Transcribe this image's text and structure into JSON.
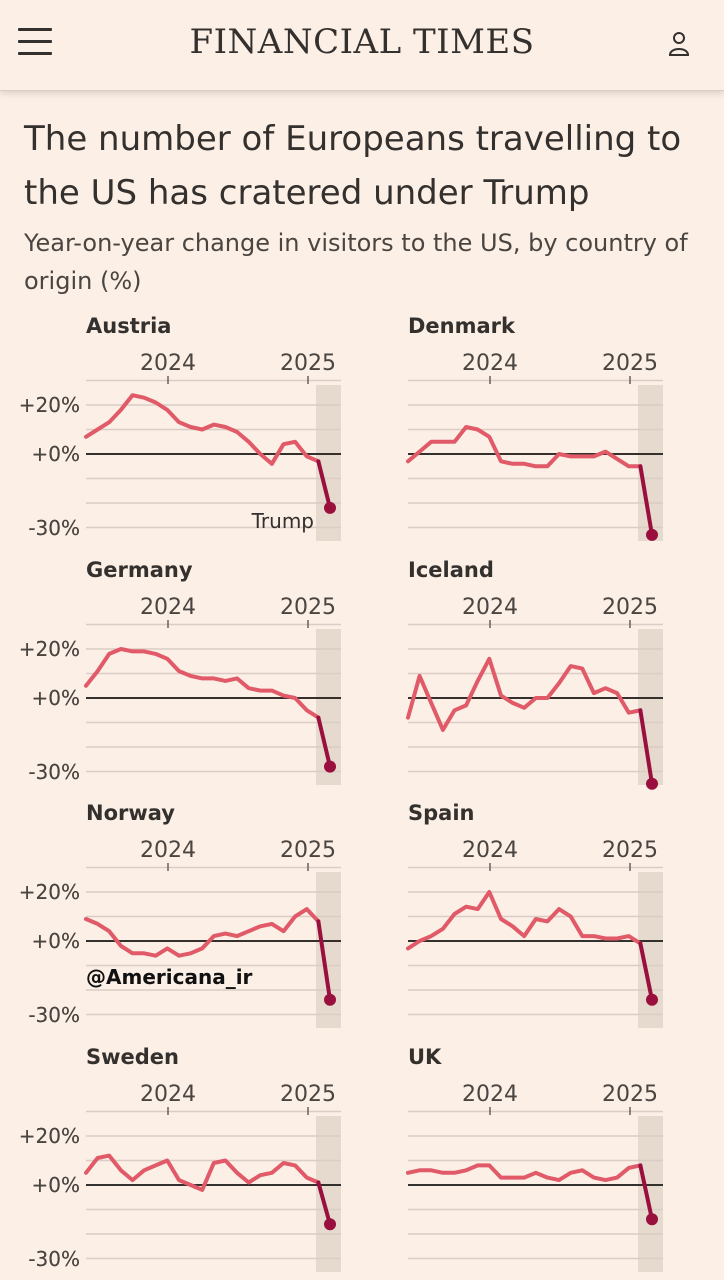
{
  "header": {
    "logo": "FINANCIAL TIMES",
    "menu_icon": "hamburger-menu-icon",
    "user_icon": "user-icon"
  },
  "article": {
    "title": "The number of Europeans travelling to the US has cratered under Trump",
    "subtitle": "Year-on-year change in visitors to the US, by country of origin (%)"
  },
  "colors": {
    "background": "#fcefe6",
    "line": "#e05a68",
    "highlight_line": "#990f3d",
    "shade": "#e6d9ce",
    "grid": "#d9cdc4",
    "zero": "#33302e"
  },
  "chart_data": [
    {
      "type": "line",
      "title": "Austria",
      "x_tick_labels": [
        "2024",
        "2025"
      ],
      "y_tick_labels": [
        "+20%",
        "+0%",
        "-30%"
      ],
      "ylim": [
        -30,
        30
      ],
      "annotation": "Trump",
      "values": [
        7,
        10,
        13,
        18,
        24,
        23,
        21,
        18,
        13,
        11,
        10,
        12,
        11,
        9,
        5,
        0,
        -4,
        4,
        5,
        -1,
        -3,
        -22
      ]
    },
    {
      "type": "line",
      "title": "Denmark",
      "x_tick_labels": [
        "2024",
        "2025"
      ],
      "y_tick_labels": [
        "+20%",
        "+0%",
        "-30%"
      ],
      "ylim": [
        -30,
        30
      ],
      "values": [
        -3,
        1,
        5,
        5,
        5,
        11,
        10,
        7,
        -3,
        -4,
        -4,
        -5,
        -5,
        0,
        -1,
        -1,
        -1,
        1,
        -2,
        -5,
        -5,
        -33
      ]
    },
    {
      "type": "line",
      "title": "Germany",
      "x_tick_labels": [
        "2024",
        "2025"
      ],
      "y_tick_labels": [
        "+20%",
        "+0%",
        "-30%"
      ],
      "ylim": [
        -30,
        30
      ],
      "values": [
        5,
        11,
        18,
        20,
        19,
        19,
        18,
        16,
        11,
        9,
        8,
        8,
        7,
        8,
        4,
        3,
        3,
        1,
        0,
        -5,
        -8,
        -28
      ]
    },
    {
      "type": "line",
      "title": "Iceland",
      "x_tick_labels": [
        "2024",
        "2025"
      ],
      "y_tick_labels": [
        "+20%",
        "+0%",
        "-30%"
      ],
      "ylim": [
        -30,
        30
      ],
      "values": [
        -8,
        9,
        -2,
        -13,
        -5,
        -3,
        7,
        16,
        1,
        -2,
        -4,
        0,
        0,
        6,
        13,
        12,
        2,
        4,
        2,
        -6,
        -5,
        -35
      ]
    },
    {
      "type": "line",
      "title": "Norway",
      "x_tick_labels": [
        "2024",
        "2025"
      ],
      "y_tick_labels": [
        "+20%",
        "+0%",
        "-30%"
      ],
      "ylim": [
        -30,
        30
      ],
      "values": [
        9,
        7,
        4,
        -2,
        -5,
        -5,
        -6,
        -3,
        -6,
        -5,
        -3,
        2,
        3,
        2,
        4,
        6,
        7,
        4,
        10,
        13,
        8,
        -24
      ]
    },
    {
      "type": "line",
      "title": "Spain",
      "x_tick_labels": [
        "2024",
        "2025"
      ],
      "y_tick_labels": [
        "+20%",
        "+0%",
        "-30%"
      ],
      "ylim": [
        -30,
        30
      ],
      "values": [
        -3,
        0,
        2,
        5,
        11,
        14,
        13,
        20,
        9,
        6,
        2,
        9,
        8,
        13,
        10,
        2,
        2,
        1,
        1,
        2,
        -1,
        -24
      ]
    },
    {
      "type": "line",
      "title": "Sweden",
      "x_tick_labels": [
        "2024",
        "2025"
      ],
      "y_tick_labels": [
        "+20%",
        "+0%",
        "-30%"
      ],
      "ylim": [
        -30,
        30
      ],
      "values": [
        5,
        11,
        12,
        6,
        2,
        6,
        8,
        10,
        2,
        0,
        -2,
        9,
        10,
        5,
        1,
        4,
        5,
        9,
        8,
        3,
        1,
        -16
      ]
    },
    {
      "type": "line",
      "title": "UK",
      "x_tick_labels": [
        "2024",
        "2025"
      ],
      "y_tick_labels": [
        "+20%",
        "+0%",
        "-30%"
      ],
      "ylim": [
        -30,
        30
      ],
      "values": [
        5,
        6,
        6,
        5,
        5,
        6,
        8,
        8,
        3,
        3,
        3,
        5,
        3,
        2,
        5,
        6,
        3,
        2,
        3,
        7,
        8,
        -14
      ]
    }
  ],
  "watermark": "@Americana_ir"
}
